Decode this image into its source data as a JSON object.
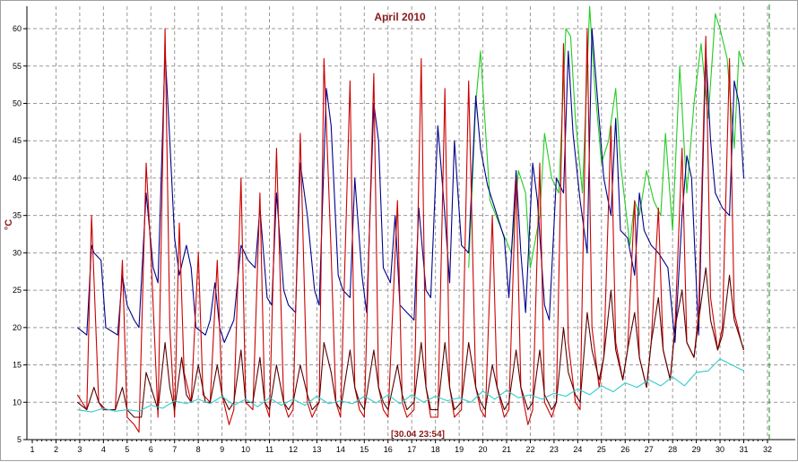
{
  "chart_data": {
    "type": "line",
    "title": "April 2010",
    "ylabel": "°C",
    "xlabel": "",
    "cursor_label": "[30.04 23:54]",
    "xlim": [
      1,
      32
    ],
    "ylim": [
      5,
      63
    ],
    "x_ticks": [
      "1",
      "2",
      "3",
      "4",
      "5",
      "6",
      "7",
      "8",
      "9",
      "10",
      "11",
      "12",
      "13",
      "14",
      "15",
      "16",
      "17",
      "18",
      "19",
      "20",
      "21",
      "22",
      "23",
      "24",
      "25",
      "26",
      "27",
      "28",
      "29",
      "30",
      "31",
      "32"
    ],
    "y_ticks": [
      "5",
      "10",
      "15",
      "20",
      "25",
      "30",
      "35",
      "40",
      "45",
      "50",
      "55",
      "60"
    ],
    "grid": true,
    "legend": "none",
    "series": [
      {
        "color": "#22cc22",
        "x": [
          19.4,
          19.7,
          19.9,
          20.3,
          20.8,
          21.2,
          21.5,
          21.8,
          22.0,
          22.4,
          22.6,
          22.9,
          23.2,
          23.5,
          23.7,
          23.9,
          24.2,
          24.5,
          24.7,
          25.0,
          25.3,
          25.6,
          25.8,
          26.2,
          26.4,
          26.6,
          26.9,
          27.2,
          27.5,
          27.7,
          28.0,
          28.3,
          28.6,
          28.9,
          29.2,
          29.5,
          29.8,
          30.0,
          30.3,
          30.6,
          30.8,
          31.0
        ],
        "y": [
          28,
          50,
          57,
          37,
          33,
          30,
          41,
          38,
          28,
          35,
          46,
          40,
          38,
          60,
          59,
          48,
          38,
          63,
          53,
          42,
          45,
          52,
          42,
          31,
          37,
          35,
          41,
          37,
          35,
          46,
          33,
          55,
          38,
          50,
          58,
          48,
          62,
          60,
          56,
          44,
          57,
          55
        ]
      },
      {
        "color": "#00008b",
        "x": [
          2.9,
          3.3,
          3.5,
          3.6,
          3.9,
          4.1,
          4.6,
          4.8,
          5.0,
          5.3,
          5.5,
          5.8,
          6.1,
          6.3,
          6.6,
          6.8,
          7.0,
          7.2,
          7.5,
          7.7,
          7.9,
          8.3,
          8.5,
          8.7,
          8.9,
          9.1,
          9.5,
          9.8,
          10.1,
          10.4,
          10.6,
          10.9,
          11.1,
          11.3,
          11.6,
          11.8,
          12.1,
          12.3,
          12.6,
          12.9,
          13.1,
          13.4,
          13.6,
          13.9,
          14.1,
          14.4,
          14.6,
          14.9,
          15.1,
          15.4,
          15.6,
          15.8,
          16.1,
          16.3,
          16.5,
          16.8,
          17.1,
          17.3,
          17.6,
          17.8,
          18.1,
          18.4,
          18.6,
          18.8,
          19.1,
          19.4,
          19.7,
          19.9,
          20.2,
          20.5,
          20.9,
          21.1,
          21.4,
          21.6,
          21.8,
          22.1,
          22.3,
          22.6,
          22.8,
          23.1,
          23.4,
          23.6,
          23.8,
          24.1,
          24.4,
          24.6,
          24.8,
          25.1,
          25.4,
          25.6,
          25.8,
          26.1,
          26.4,
          26.6,
          26.8,
          27.1,
          27.4,
          27.6,
          27.8,
          28.1,
          28.4,
          28.6,
          28.8,
          29.1,
          29.4,
          29.6,
          29.8,
          30.1,
          30.4,
          30.6,
          30.8,
          31.0
        ],
        "y": [
          20,
          19,
          31,
          30,
          29,
          20,
          19,
          27,
          23,
          21,
          20,
          38,
          28,
          26,
          57,
          45,
          32,
          27,
          31,
          28,
          20,
          19,
          21,
          26,
          20,
          18,
          21,
          31,
          29,
          28,
          36,
          24,
          23,
          38,
          25,
          23,
          22,
          42,
          35,
          25,
          23,
          52,
          47,
          27,
          25,
          24,
          40,
          27,
          22,
          50,
          45,
          28,
          26,
          35,
          23,
          22,
          21,
          36,
          25,
          24,
          47,
          35,
          26,
          45,
          31,
          30,
          51,
          44,
          39,
          36,
          32,
          24,
          41,
          30,
          22,
          42,
          37,
          23,
          21,
          40,
          38,
          57,
          46,
          37,
          30,
          60,
          52,
          40,
          35,
          48,
          33,
          32,
          27,
          38,
          33,
          31,
          30,
          29,
          28,
          18,
          35,
          43,
          40,
          19,
          57,
          45,
          38,
          36,
          35,
          53,
          50,
          40
        ]
      },
      {
        "color": "#cc0000",
        "x": [
          2.9,
          3.3,
          3.5,
          3.8,
          4.0,
          4.5,
          4.8,
          5.0,
          5.3,
          5.5,
          5.8,
          6.0,
          6.3,
          6.6,
          6.8,
          7.0,
          7.2,
          7.4,
          7.7,
          8.0,
          8.2,
          8.5,
          8.8,
          9.0,
          9.3,
          9.5,
          9.8,
          10.0,
          10.3,
          10.6,
          10.8,
          11.0,
          11.3,
          11.6,
          11.8,
          12.0,
          12.3,
          12.6,
          12.8,
          13.1,
          13.3,
          13.6,
          13.8,
          14.0,
          14.4,
          14.6,
          14.8,
          15.0,
          15.4,
          15.6,
          15.8,
          16.0,
          16.4,
          16.6,
          16.8,
          17.1,
          17.4,
          17.6,
          17.8,
          18.1,
          18.4,
          18.6,
          18.8,
          19.1,
          19.4,
          19.7,
          19.9,
          20.1,
          20.4,
          20.6,
          20.9,
          21.1,
          21.4,
          21.6,
          21.9,
          22.1,
          22.4,
          22.6,
          22.9,
          23.1,
          23.4,
          23.6,
          23.9,
          24.1,
          24.4,
          24.6,
          24.9,
          25.1,
          25.4,
          25.6,
          25.9,
          26.1,
          26.4,
          26.6,
          26.9,
          27.1,
          27.4,
          27.6,
          27.9,
          28.1,
          28.4,
          28.6,
          28.9,
          29.1,
          29.4,
          29.6,
          29.9,
          30.1,
          30.4,
          30.6,
          30.9,
          31.0
        ],
        "y": [
          11,
          9,
          35,
          10,
          9,
          9,
          29,
          8,
          7,
          6,
          42,
          30,
          8,
          60,
          20,
          8,
          34,
          14,
          10,
          30,
          11,
          10,
          29,
          11,
          7,
          9,
          40,
          10,
          9,
          38,
          10,
          8,
          44,
          10,
          8,
          9,
          46,
          10,
          8,
          10,
          56,
          30,
          10,
          8,
          53,
          12,
          9,
          8,
          54,
          12,
          9,
          8,
          37,
          10,
          8,
          9,
          56,
          12,
          8,
          8,
          52,
          12,
          8,
          9,
          53,
          12,
          9,
          8,
          35,
          12,
          8,
          9,
          40,
          12,
          7,
          9,
          42,
          10,
          8,
          10,
          58,
          18,
          10,
          9,
          60,
          20,
          12,
          16,
          47,
          18,
          13,
          17,
          37,
          16,
          12,
          18,
          36,
          17,
          13,
          20,
          44,
          18,
          16,
          22,
          59,
          24,
          17,
          20,
          56,
          22,
          18,
          17
        ]
      },
      {
        "color": "#5a0000",
        "x": [
          2.9,
          3.3,
          3.6,
          3.8,
          4.1,
          4.5,
          4.8,
          5.0,
          5.3,
          5.6,
          5.8,
          6.0,
          6.3,
          6.6,
          6.8,
          7.0,
          7.3,
          7.5,
          7.7,
          8.0,
          8.3,
          8.5,
          8.8,
          9.0,
          9.3,
          9.5,
          9.8,
          10.0,
          10.3,
          10.6,
          10.8,
          11.0,
          11.3,
          11.6,
          11.8,
          12.0,
          12.3,
          12.6,
          12.8,
          13.1,
          13.3,
          13.6,
          13.8,
          14.0,
          14.4,
          14.6,
          14.8,
          15.0,
          15.4,
          15.6,
          15.8,
          16.0,
          16.4,
          16.6,
          16.8,
          17.1,
          17.4,
          17.6,
          17.8,
          18.1,
          18.4,
          18.6,
          18.8,
          19.1,
          19.4,
          19.7,
          19.9,
          20.1,
          20.4,
          20.6,
          20.9,
          21.1,
          21.4,
          21.6,
          21.9,
          22.1,
          22.4,
          22.6,
          22.9,
          23.1,
          23.4,
          23.6,
          23.9,
          24.1,
          24.4,
          24.6,
          24.9,
          25.1,
          25.4,
          25.6,
          25.9,
          26.1,
          26.4,
          26.6,
          26.9,
          27.1,
          27.4,
          27.6,
          27.9,
          28.1,
          28.4,
          28.6,
          28.9,
          29.1,
          29.4,
          29.6,
          29.9,
          30.1,
          30.4,
          30.6,
          30.9,
          31.0
        ],
        "y": [
          10,
          9,
          12,
          10,
          9,
          9,
          12,
          9,
          8,
          8,
          14,
          12,
          9,
          18,
          12,
          9,
          16,
          11,
          10,
          15,
          10,
          10,
          15,
          11,
          9,
          10,
          17,
          10,
          10,
          16,
          10,
          9,
          15,
          10,
          9,
          10,
          15,
          11,
          9,
          10,
          18,
          14,
          10,
          9,
          17,
          12,
          10,
          9,
          17,
          12,
          10,
          9,
          15,
          11,
          9,
          10,
          18,
          12,
          9,
          9,
          18,
          12,
          9,
          10,
          18,
          12,
          10,
          9,
          15,
          12,
          9,
          10,
          17,
          12,
          9,
          10,
          17,
          11,
          9,
          10,
          20,
          14,
          11,
          10,
          22,
          17,
          13,
          16,
          25,
          17,
          13,
          17,
          22,
          16,
          12,
          18,
          24,
          17,
          13,
          20,
          25,
          18,
          16,
          21,
          28,
          21,
          17,
          19,
          27,
          21,
          18,
          17
        ]
      },
      {
        "color": "#33cccc",
        "x": [
          2.9,
          3.5,
          4.0,
          4.5,
          5.0,
          5.5,
          6.0,
          6.5,
          7.0,
          7.5,
          8.0,
          8.5,
          9.0,
          9.5,
          10.0,
          10.5,
          11.0,
          11.5,
          12.0,
          12.5,
          13.0,
          13.5,
          14.0,
          14.5,
          15.0,
          15.5,
          16.0,
          16.5,
          17.0,
          17.5,
          18.0,
          18.5,
          19.0,
          19.5,
          20.0,
          20.5,
          21.0,
          21.5,
          22.0,
          22.5,
          23.0,
          23.5,
          24.0,
          24.5,
          25.0,
          25.5,
          26.0,
          26.5,
          27.0,
          27.5,
          28.0,
          28.5,
          29.0,
          29.5,
          30.0,
          30.5,
          31.0
        ],
        "y": [
          9,
          8.7,
          9.2,
          8.8,
          9,
          8.8,
          9.6,
          9.2,
          10.2,
          9.8,
          10.4,
          9.8,
          10.8,
          9.6,
          10.4,
          9.4,
          10.6,
          9.6,
          10.4,
          9.6,
          10.8,
          9.8,
          10.2,
          9.8,
          10.8,
          9.9,
          11,
          9.8,
          11,
          10,
          10.8,
          10.2,
          10.6,
          10,
          11.5,
          10.4,
          11.6,
          10.6,
          11,
          10.4,
          11.2,
          10.8,
          11.8,
          11,
          12.2,
          11.4,
          12.6,
          12,
          13,
          12.2,
          13.4,
          12.2,
          14,
          14.2,
          15.8,
          15,
          14.2
        ]
      }
    ]
  }
}
